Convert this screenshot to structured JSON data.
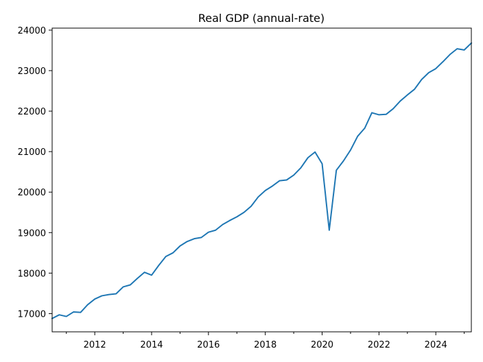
{
  "chart_data": {
    "type": "line",
    "title": "Real GDP (annual-rate)",
    "xlabel": "",
    "ylabel": "",
    "xlim": [
      2010.5,
      2025.25
    ],
    "ylim": [
      16550,
      24050
    ],
    "x_ticks": [
      2012,
      2014,
      2016,
      2018,
      2020,
      2022,
      2024
    ],
    "x_tick_labels": [
      "2012",
      "2014",
      "2016",
      "2018",
      "2020",
      "2022",
      "2024"
    ],
    "y_ticks": [
      17000,
      18000,
      19000,
      20000,
      21000,
      22000,
      23000,
      24000
    ],
    "y_tick_labels": [
      "17000",
      "18000",
      "19000",
      "20000",
      "21000",
      "22000",
      "23000",
      "24000"
    ],
    "grid": false,
    "series": [
      {
        "color": "#1f77b4",
        "x": [
          2010.5,
          2010.75,
          2011.0,
          2011.25,
          2011.5,
          2011.75,
          2012.0,
          2012.25,
          2012.5,
          2012.75,
          2013.0,
          2013.25,
          2013.5,
          2013.75,
          2014.0,
          2014.25,
          2014.5,
          2014.75,
          2015.0,
          2015.25,
          2015.5,
          2015.75,
          2016.0,
          2016.25,
          2016.5,
          2016.75,
          2017.0,
          2017.25,
          2017.5,
          2017.75,
          2018.0,
          2018.25,
          2018.5,
          2018.75,
          2019.0,
          2019.25,
          2019.5,
          2019.75,
          2020.0,
          2020.25,
          2020.5,
          2020.75,
          2021.0,
          2021.25,
          2021.5,
          2021.75,
          2022.0,
          2022.25,
          2022.5,
          2022.75,
          2023.0,
          2023.25,
          2023.5,
          2023.75,
          2024.0,
          2024.25,
          2024.5,
          2024.75,
          2025.0,
          2025.25
        ],
        "values": [
          16880,
          16970,
          16930,
          17040,
          17030,
          17220,
          17360,
          17440,
          17470,
          17490,
          17660,
          17710,
          17870,
          18020,
          17950,
          18190,
          18410,
          18500,
          18670,
          18780,
          18850,
          18880,
          19010,
          19060,
          19200,
          19300,
          19390,
          19500,
          19650,
          19880,
          20040,
          20150,
          20280,
          20300,
          20420,
          20600,
          20850,
          20990,
          20700,
          19060,
          20540,
          20770,
          21040,
          21380,
          21580,
          21960,
          21910,
          21920,
          22060,
          22250,
          22400,
          22540,
          22780,
          22950,
          23050,
          23220,
          23400,
          23540,
          23510,
          23680
        ]
      }
    ]
  }
}
